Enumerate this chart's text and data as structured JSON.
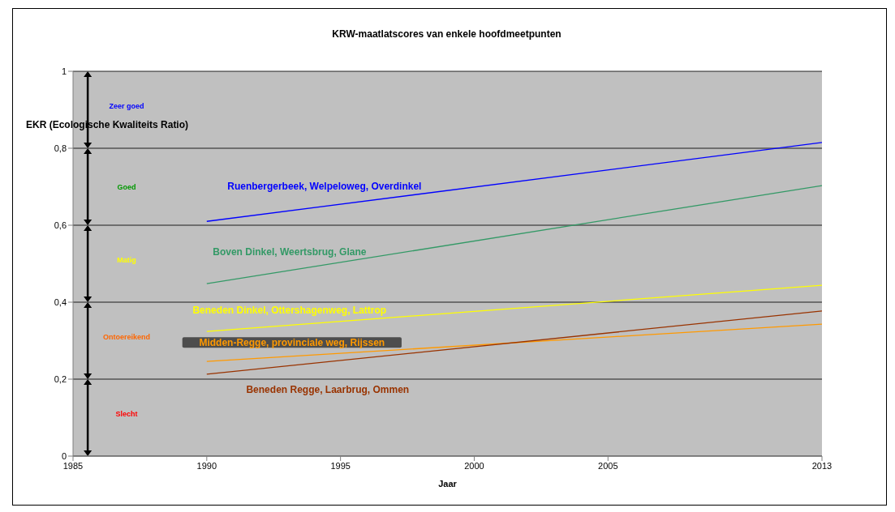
{
  "chart_data": {
    "type": "line",
    "title": "KRW-maatlatscores van enkele hoofdmeetpunten",
    "xlabel": "Jaar",
    "ylabel": "EKR (Ecologische Kwaliteits Ratio)",
    "series": [
      {
        "name": "Ruenbergerbeek, Welpeloweg, Overdinkel",
        "color": "#0000ff",
        "values": [
          0.61,
          0.815
        ]
      },
      {
        "name": "Boven Dinkel, Weertsbrug, Glane",
        "color": "#339966",
        "values": [
          0.448,
          0.703
        ]
      },
      {
        "name": "Beneden Dinkel, Ottershagenweg, Lattrop",
        "color": "#ffff00",
        "values": [
          0.324,
          0.444
        ]
      },
      {
        "name": "Midden-Regge, provinciale weg, Rijssen",
        "color": "#ff9900",
        "values": [
          0.246,
          0.343
        ]
      },
      {
        "name": "Beneden Regge, Laarbrug, Ommen",
        "color": "#993300",
        "values": [
          0.213,
          0.377
        ]
      }
    ],
    "x": [
      1990,
      2013
    ],
    "xlim": [
      1985,
      2013
    ],
    "xticks": [
      1985,
      1990,
      1995,
      2000,
      2005,
      2013
    ],
    "ylim": [
      0,
      1
    ],
    "yticks": [
      0,
      {
        "value": 0.2,
        "label": "0,2"
      },
      {
        "value": 0.4,
        "label": "0,4"
      },
      {
        "value": 0.6,
        "label": "0,6"
      },
      {
        "value": 0.8,
        "label": "0,8"
      },
      1
    ],
    "grid": "y",
    "marker": "none",
    "line_style": "solid",
    "annotations": [
      "Zeer goed",
      "Goed",
      "Matig",
      "Ontoereikend",
      "Slecht"
    ]
  }
}
